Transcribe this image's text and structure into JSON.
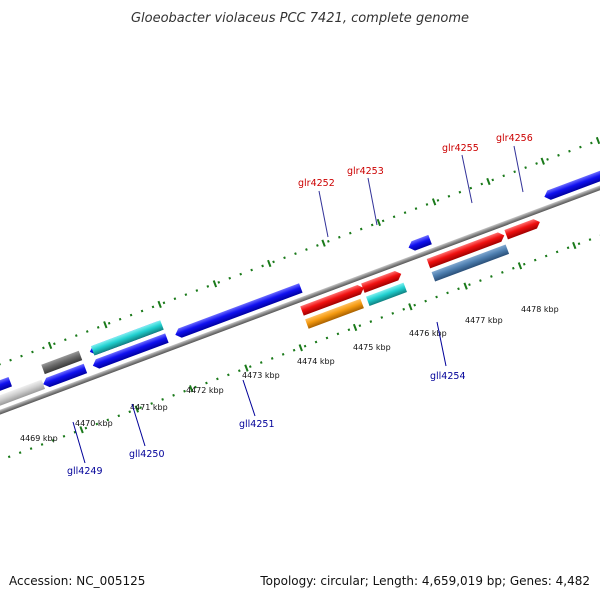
{
  "title": "Gloeobacter violaceus PCC 7421, complete genome",
  "footer": {
    "accession": "Accession: NC_005125",
    "summary": "Topology: circular; Length: 4,659,019 bp; Genes: 4,482"
  },
  "colors": {
    "forward_label": "#cc0000",
    "reverse_label": "#000099",
    "axis_tick": "#1a7a1a",
    "backbone": "#888888"
  },
  "kbp_ticks": [
    "4469 kbp",
    "4470 kbp",
    "4471 kbp",
    "4472 kbp",
    "4473 kbp",
    "4474 kbp",
    "4475 kbp",
    "4476 kbp",
    "4477 kbp",
    "4478 kbp"
  ],
  "gene_labels": {
    "forward": [
      "glr4252",
      "glr4253",
      "glr4255",
      "glr4256"
    ],
    "reverse": [
      "gll4249",
      "gll4250",
      "gll4251",
      "gll4254"
    ]
  }
}
